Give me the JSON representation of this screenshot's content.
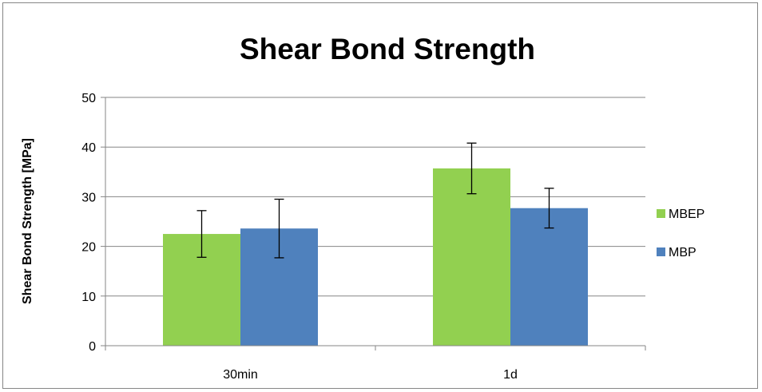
{
  "chart_data": {
    "type": "bar",
    "title": "Shear Bond Strength",
    "xlabel": "",
    "ylabel": "Shear Bond Strength [MPa]",
    "categories": [
      "30min",
      "1d"
    ],
    "ylim": [
      0,
      50
    ],
    "yticks": [
      0,
      10,
      20,
      30,
      40,
      50
    ],
    "grid": true,
    "legend_position": "right",
    "series": [
      {
        "name": "MBEP",
        "color": "#92d050",
        "values": [
          22.5,
          35.7
        ],
        "error_low": [
          17.8,
          30.6
        ],
        "error_high": [
          27.2,
          40.8
        ]
      },
      {
        "name": "MBP",
        "color": "#4f81bd",
        "values": [
          23.6,
          27.7
        ],
        "error_low": [
          17.7,
          23.7
        ],
        "error_high": [
          29.5,
          31.7
        ]
      }
    ]
  }
}
